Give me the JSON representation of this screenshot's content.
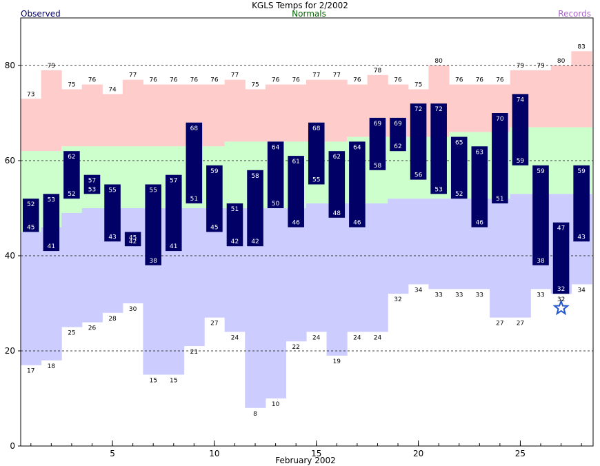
{
  "chart_data": {
    "type": "bar",
    "title": "KGLS Temps for 2/2002",
    "xlabel": "February 2002",
    "ylabel": "",
    "legend": [
      "Observed",
      "Normals",
      "Records"
    ],
    "legend_placement": "top",
    "ylim": [
      0,
      90
    ],
    "yticks": [
      0,
      20,
      40,
      60,
      80
    ],
    "xticks": [
      5,
      10,
      15,
      20,
      25
    ],
    "grid": "dashed horizontal at 20, 40, 60, 80",
    "colors": {
      "record_band": "#ffcccc",
      "normal_band": "#ccffcc",
      "low_band": "#ccccff",
      "observed": "#000066",
      "legend_observed": "#000066",
      "legend_normals": "#006600",
      "legend_records": "#aa66cc",
      "marker": "#2255cc"
    },
    "days": [
      1,
      2,
      3,
      4,
      5,
      6,
      7,
      8,
      9,
      10,
      11,
      12,
      13,
      14,
      15,
      16,
      17,
      18,
      19,
      20,
      21,
      22,
      23,
      24,
      25,
      26,
      27,
      28
    ],
    "record_high": [
      73,
      79,
      75,
      76,
      74,
      77,
      76,
      76,
      76,
      76,
      77,
      75,
      76,
      76,
      77,
      77,
      76,
      78,
      76,
      75,
      80,
      76,
      76,
      76,
      79,
      79,
      80,
      83
    ],
    "normal_high": [
      62,
      62,
      63,
      63,
      63,
      63,
      63,
      63,
      63,
      63,
      64,
      64,
      64,
      64,
      64,
      64,
      65,
      65,
      65,
      65,
      65,
      66,
      66,
      66,
      67,
      67,
      67,
      67
    ],
    "normal_low": [
      45,
      46,
      49,
      50,
      50,
      50,
      50,
      50,
      50,
      50,
      50,
      50,
      50,
      50,
      51,
      51,
      51,
      51,
      52,
      52,
      52,
      52,
      52,
      52,
      53,
      53,
      53,
      53
    ],
    "record_low": [
      17,
      18,
      25,
      26,
      28,
      30,
      15,
      15,
      21,
      27,
      24,
      8,
      10,
      22,
      24,
      19,
      24,
      24,
      32,
      34,
      33,
      33,
      33,
      27,
      27,
      33,
      32,
      34
    ],
    "observed_high": [
      52,
      53,
      62,
      57,
      55,
      45,
      55,
      57,
      68,
      59,
      51,
      58,
      64,
      61,
      68,
      62,
      64,
      69,
      69,
      72,
      72,
      65,
      63,
      70,
      74,
      59,
      47,
      59
    ],
    "observed_low": [
      45,
      41,
      52,
      53,
      43,
      42,
      38,
      41,
      51,
      45,
      42,
      42,
      50,
      46,
      55,
      48,
      46,
      58,
      62,
      56,
      53,
      52,
      46,
      51,
      59,
      38,
      32,
      43
    ],
    "annotations": [
      {
        "type": "star",
        "day": 27,
        "value": 29
      }
    ]
  }
}
